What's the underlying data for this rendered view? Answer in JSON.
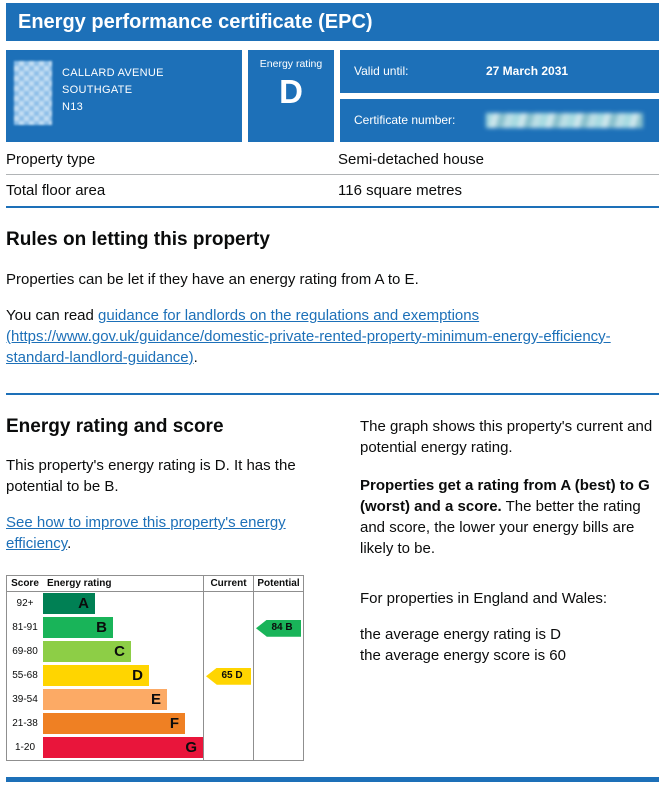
{
  "header": {
    "title": "Energy performance certificate (EPC)"
  },
  "summary": {
    "address_lines": [
      "CALLARD AVENUE",
      "SOUTHGATE",
      "N13"
    ],
    "energy_rating_label": "Energy rating",
    "energy_rating": "D",
    "valid_until_label": "Valid until:",
    "valid_until_value": "27 March 2031",
    "certificate_number_label": "Certificate number:"
  },
  "property_details": {
    "rows": [
      {
        "label": "Property type",
        "value": "Semi-detached house"
      },
      {
        "label": "Total floor area",
        "value": "116 square metres"
      }
    ]
  },
  "rules_section": {
    "heading": "Rules on letting this property",
    "intro": "Properties can be let if they have an energy rating from A to E.",
    "link_prefix": "You can read ",
    "link_text": "guidance for landlords on the regulations and exemptions (https://www.gov.uk/guidance/domestic-private-rented-property-minimum-energy-efficiency-standard-landlord-guidance)",
    "link_suffix": "."
  },
  "energy_section": {
    "heading": "Energy rating and score",
    "summary_text": "This property's energy rating is D. It has the potential to be B.",
    "improve_link_text": "See how to improve this property's energy efficiency",
    "improve_link_suffix": ".",
    "graph_intro": "The graph shows this property's current and potential energy rating.",
    "rating_explain_bold": "Properties get a rating from A (best) to G (worst) and a score.",
    "rating_explain_rest": "The better the rating and score, the lower your energy bills are likely to be.",
    "averages_intro": "For properties in England and Wales:",
    "average_rating": "the average energy rating is D",
    "average_score": "the average energy score is 60"
  },
  "chart_data": {
    "type": "epc-rating-bands",
    "columns": [
      "Score",
      "Energy rating",
      "Current",
      "Potential"
    ],
    "bands": [
      {
        "score": "92+",
        "letter": "A",
        "color": "#008054"
      },
      {
        "score": "81-91",
        "letter": "B",
        "color": "#19b459"
      },
      {
        "score": "69-80",
        "letter": "C",
        "color": "#8dce46"
      },
      {
        "score": "55-68",
        "letter": "D",
        "color": "#ffd500"
      },
      {
        "score": "39-54",
        "letter": "E",
        "color": "#fcaa65"
      },
      {
        "score": "21-38",
        "letter": "F",
        "color": "#ef8023"
      },
      {
        "score": "1-20",
        "letter": "G",
        "color": "#e9153b"
      }
    ],
    "current": {
      "score": 65,
      "letter": "D",
      "band_index": 3,
      "color": "#ffd500"
    },
    "potential": {
      "score": 84,
      "letter": "B",
      "band_index": 1,
      "color": "#19b459"
    }
  },
  "colors": {
    "brand_blue": "#1d70b8",
    "link": "#1d70b8"
  }
}
